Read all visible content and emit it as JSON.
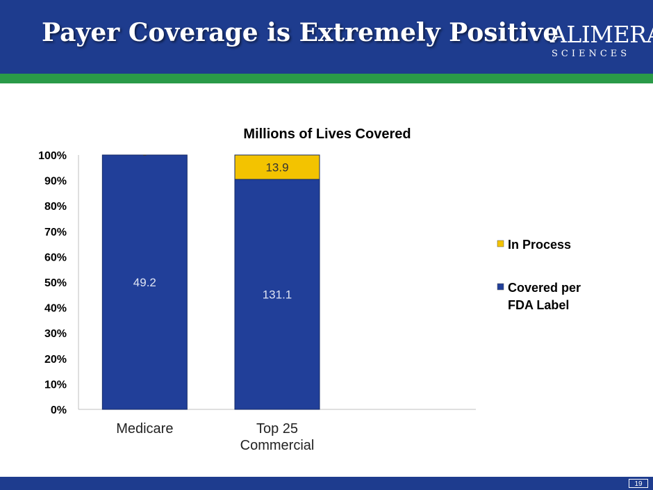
{
  "slide": {
    "title": "Payer Coverage is Extremely Positive",
    "logo_top": "ALIMERA",
    "logo_bottom": "SCIENCES",
    "page_number": "19"
  },
  "colors": {
    "header": "#1e3c8e",
    "stripe": "#2a9a48",
    "covered": "#213f99",
    "in_process": "#f3c300"
  },
  "chart_data": {
    "type": "bar",
    "stacked": true,
    "normalized": true,
    "title": "Millions of Lives Covered",
    "categories": [
      "Medicare",
      "Top 25\nCommercial"
    ],
    "series": [
      {
        "name": "Covered per FDA Label",
        "values": [
          49.2,
          131.1
        ],
        "labels": [
          "49.2",
          "131.1"
        ],
        "color": "#213f99"
      },
      {
        "name": "In Process",
        "values": [
          0,
          13.9
        ],
        "labels": [
          "-",
          "13.9"
        ],
        "color": "#f3c300"
      }
    ],
    "yticks": [
      "0%",
      "10%",
      "20%",
      "30%",
      "40%",
      "50%",
      "60%",
      "70%",
      "80%",
      "90%",
      "100%"
    ],
    "ylim": [
      0,
      100
    ],
    "legend": [
      {
        "label": "In Process",
        "color": "#f3c300"
      },
      {
        "label": "Covered per\nFDA Label",
        "color": "#213f99"
      }
    ],
    "legend_position": "right"
  }
}
